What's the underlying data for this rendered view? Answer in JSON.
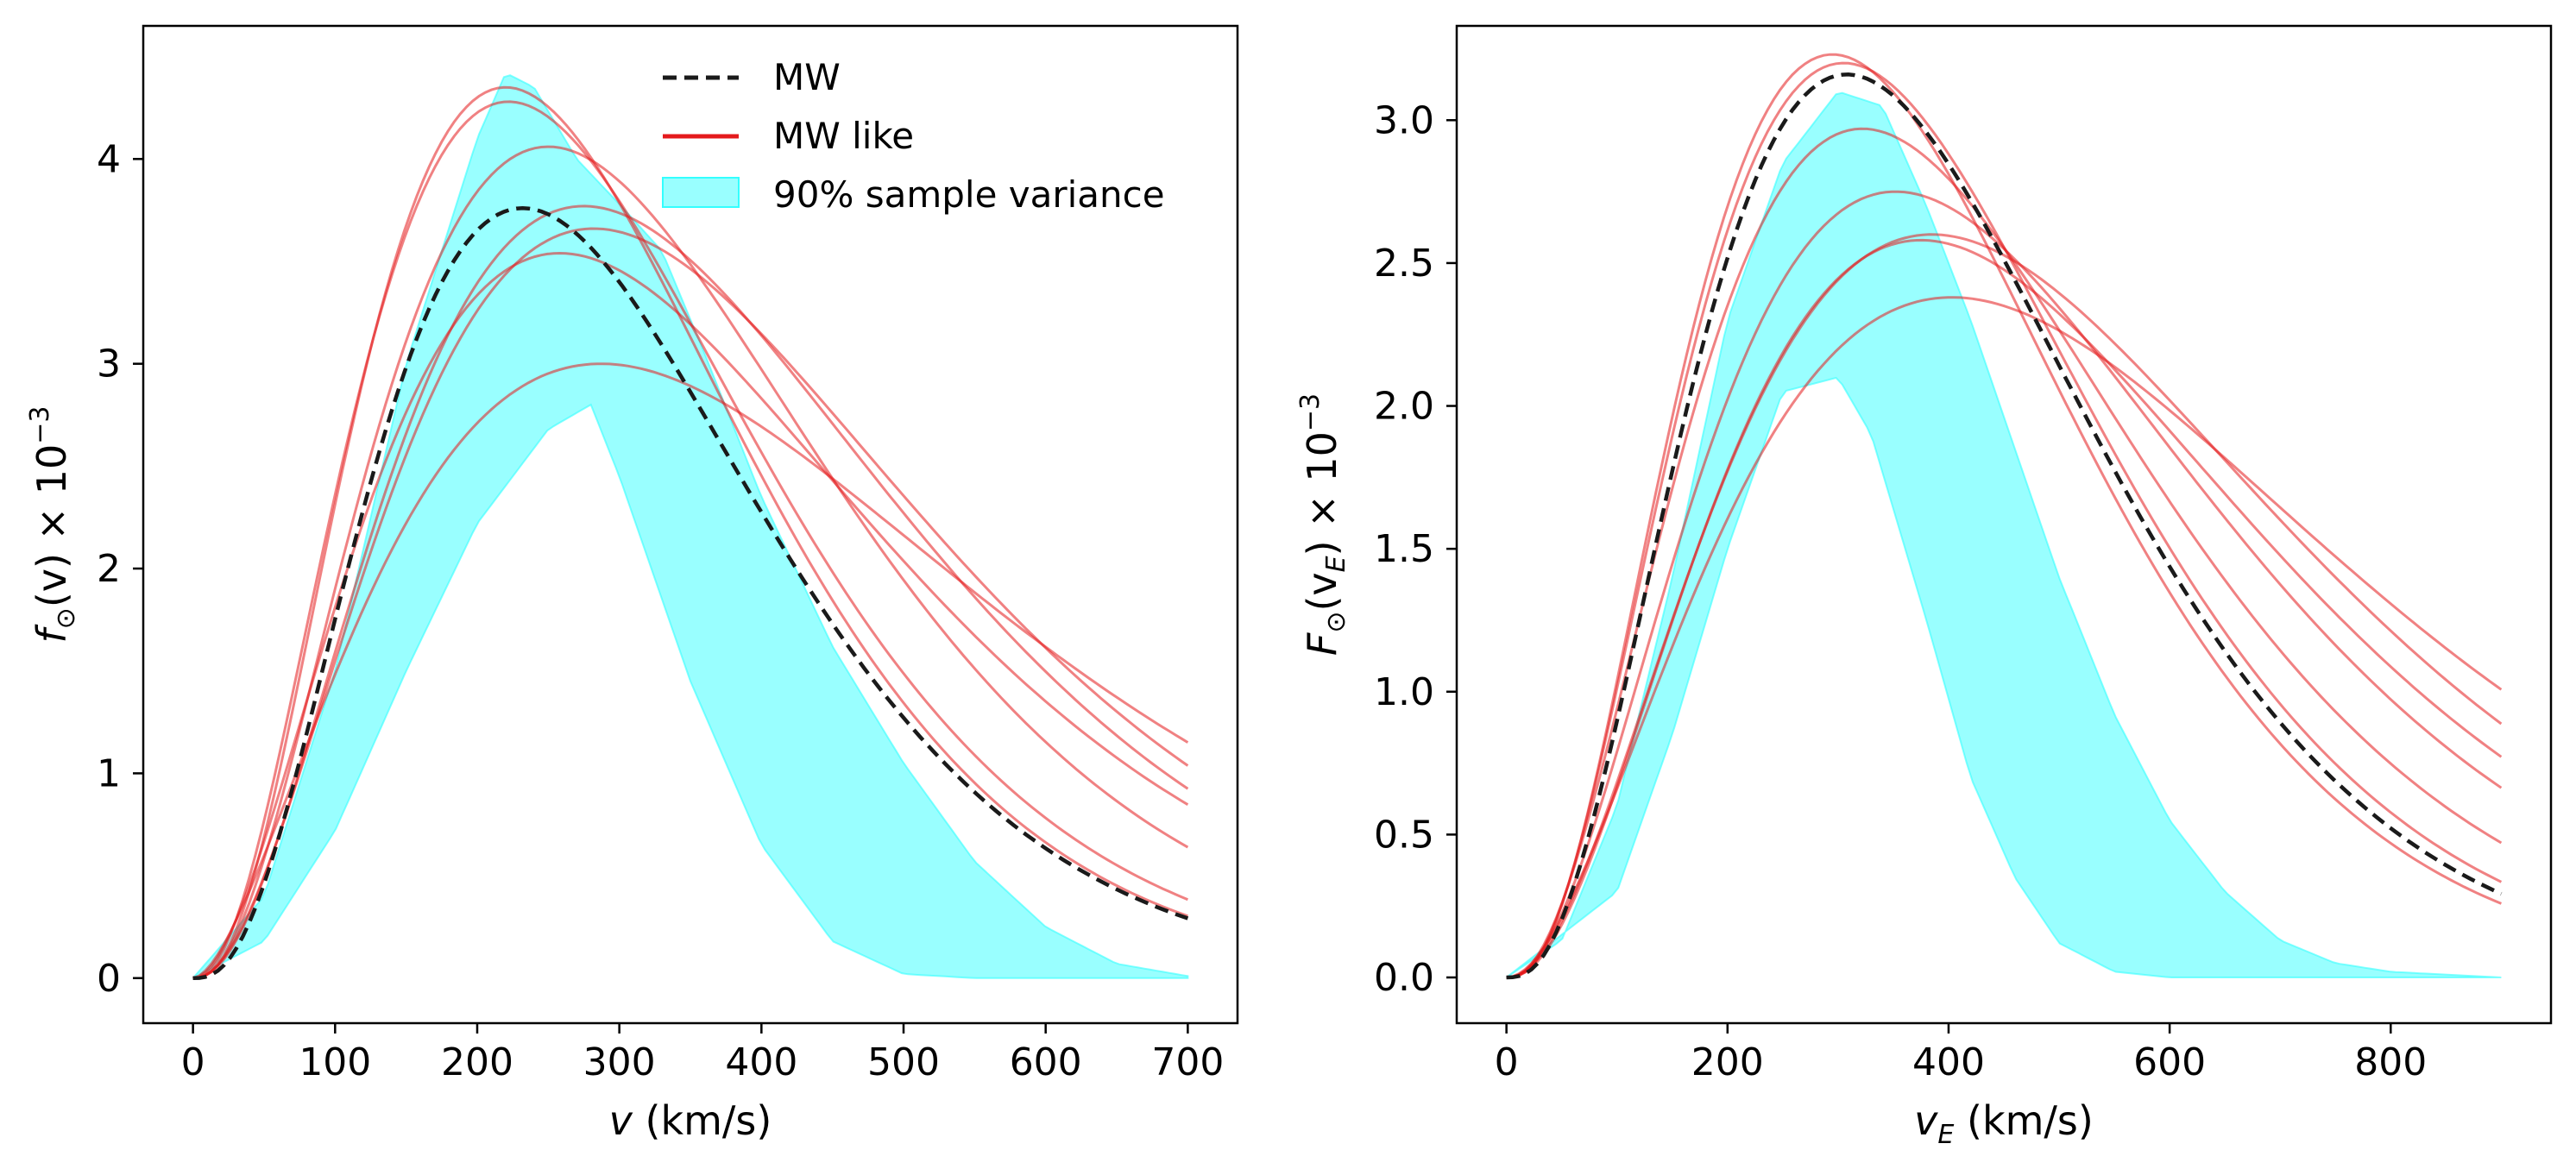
{
  "chart_data": [
    {
      "type": "line",
      "xlabel_math": "v",
      "xlabel_unit": "(km/s)",
      "ylabel_math": "f",
      "ylabel_sub": "⊙",
      "ylabel_arg": "(v)",
      "ylabel_scale": "× 10",
      "ylabel_exp": "−3",
      "xlim": [
        -35,
        735
      ],
      "ylim": [
        -0.22,
        4.65
      ],
      "xticks": [
        0,
        100,
        200,
        300,
        400,
        500,
        600,
        700
      ],
      "yticks": [
        0,
        1,
        2,
        3,
        4
      ],
      "ytick_labels": [
        "0",
        "1",
        "2",
        "3",
        "4"
      ],
      "x_max": 700,
      "legend": {
        "location": "upper center",
        "entries": [
          {
            "label": "MW",
            "style": "dashed",
            "color": "#1a1a1a"
          },
          {
            "label": "MW like",
            "style": "solid",
            "color": "#e41a1c"
          },
          {
            "label": "90% sample variance",
            "style": "fill",
            "color": "#33ffff"
          }
        ]
      },
      "mw_curve": {
        "peak": 3.76,
        "peak_x": 232,
        "shape": 2.8
      },
      "mw_like_curves": [
        {
          "peak": 4.35,
          "peak_x": 220,
          "shape": 2.6
        },
        {
          "peak": 4.28,
          "peak_x": 222,
          "shape": 2.4
        },
        {
          "peak": 4.06,
          "peak_x": 250,
          "shape": 2.4
        },
        {
          "peak": 3.77,
          "peak_x": 275,
          "shape": 2.3
        },
        {
          "peak": 3.66,
          "peak_x": 282,
          "shape": 2.2
        },
        {
          "peak": 3.54,
          "peak_x": 258,
          "shape": 2.0
        },
        {
          "peak": 3.0,
          "peak_x": 287,
          "shape": 1.75
        }
      ],
      "band": {
        "upper": [
          [
            0,
            0
          ],
          [
            50,
            0.4
          ],
          [
            100,
            1.5
          ],
          [
            150,
            3.0
          ],
          [
            200,
            4.1
          ],
          [
            220,
            4.42
          ],
          [
            240,
            4.35
          ],
          [
            270,
            4.0
          ],
          [
            300,
            3.78
          ],
          [
            330,
            3.55
          ],
          [
            360,
            3.05
          ],
          [
            400,
            2.35
          ],
          [
            450,
            1.62
          ],
          [
            500,
            1.05
          ],
          [
            550,
            0.57
          ],
          [
            600,
            0.25
          ],
          [
            650,
            0.07
          ],
          [
            700,
            0.01
          ]
        ],
        "lower": [
          [
            0,
            0
          ],
          [
            50,
            0.18
          ],
          [
            100,
            0.72
          ],
          [
            150,
            1.5
          ],
          [
            200,
            2.22
          ],
          [
            250,
            2.68
          ],
          [
            280,
            2.8
          ],
          [
            300,
            2.45
          ],
          [
            350,
            1.45
          ],
          [
            400,
            0.65
          ],
          [
            450,
            0.18
          ],
          [
            500,
            0.02
          ],
          [
            550,
            0.0
          ],
          [
            700,
            0.0
          ]
        ]
      }
    },
    {
      "type": "line",
      "xlabel_math": "v",
      "xlabel_sub": "E",
      "xlabel_unit": "(km/s)",
      "ylabel_math": "F",
      "ylabel_sub": "⊙",
      "ylabel_arg_open": "(v",
      "ylabel_arg_sub": "E",
      "ylabel_arg_close": ")",
      "ylabel_scale": "× 10",
      "ylabel_exp": "−3",
      "xlim": [
        -45,
        945
      ],
      "ylim": [
        -0.16,
        3.33
      ],
      "xticks": [
        0,
        200,
        400,
        600,
        800
      ],
      "yticks": [
        0.0,
        0.5,
        1.0,
        1.5,
        2.0,
        2.5,
        3.0
      ],
      "ytick_labels": [
        "0.0",
        "0.5",
        "1.0",
        "1.5",
        "2.0",
        "2.5",
        "3.0"
      ],
      "x_max": 900,
      "mw_curve": {
        "peak": 3.16,
        "peak_x": 308,
        "shape": 2.8
      },
      "mw_like_curves": [
        {
          "peak": 3.23,
          "peak_x": 295,
          "shape": 2.7
        },
        {
          "peak": 3.2,
          "peak_x": 305,
          "shape": 2.6
        },
        {
          "peak": 2.97,
          "peak_x": 322,
          "shape": 2.4
        },
        {
          "peak": 2.75,
          "peak_x": 352,
          "shape": 2.3
        },
        {
          "peak": 2.6,
          "peak_x": 385,
          "shape": 2.2
        },
        {
          "peak": 2.58,
          "peak_x": 375,
          "shape": 2.3
        },
        {
          "peak": 2.38,
          "peak_x": 403,
          "shape": 2.0
        }
      ],
      "band": {
        "upper": [
          [
            0,
            0
          ],
          [
            50,
            0.13
          ],
          [
            100,
            0.6
          ],
          [
            150,
            1.4
          ],
          [
            200,
            2.3
          ],
          [
            250,
            2.85
          ],
          [
            300,
            3.1
          ],
          [
            340,
            3.05
          ],
          [
            380,
            2.7
          ],
          [
            420,
            2.3
          ],
          [
            460,
            1.85
          ],
          [
            500,
            1.4
          ],
          [
            550,
            0.92
          ],
          [
            600,
            0.55
          ],
          [
            650,
            0.3
          ],
          [
            700,
            0.13
          ],
          [
            750,
            0.05
          ],
          [
            800,
            0.02
          ],
          [
            900,
            0.0
          ]
        ],
        "lower": [
          [
            0,
            0
          ],
          [
            100,
            0.3
          ],
          [
            150,
            0.85
          ],
          [
            200,
            1.5
          ],
          [
            250,
            2.05
          ],
          [
            300,
            2.1
          ],
          [
            330,
            1.9
          ],
          [
            380,
            1.25
          ],
          [
            420,
            0.7
          ],
          [
            460,
            0.35
          ],
          [
            500,
            0.12
          ],
          [
            550,
            0.02
          ],
          [
            600,
            0.0
          ],
          [
            900,
            0.0
          ]
        ]
      }
    }
  ]
}
